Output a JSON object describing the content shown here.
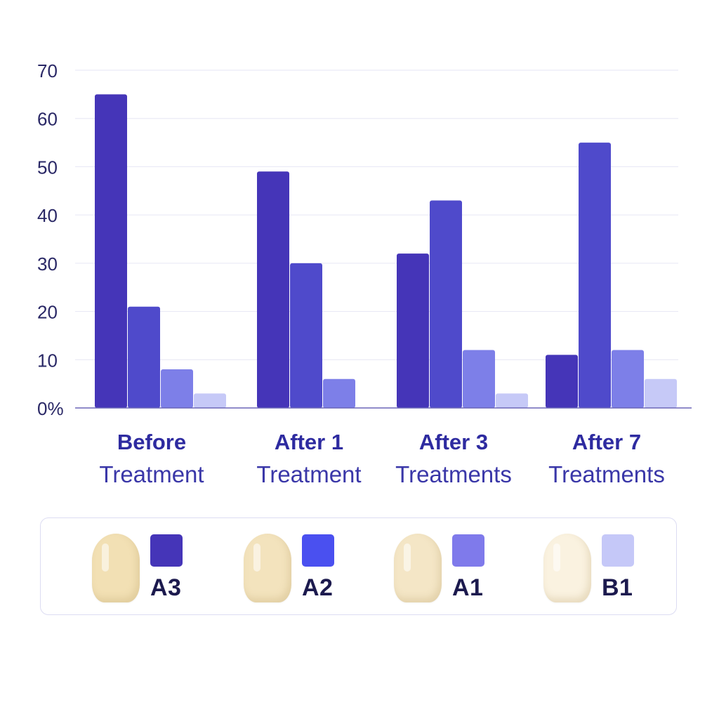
{
  "chart_data": {
    "type": "bar",
    "categories": [
      {
        "line1": "Before",
        "line2": "Treatment"
      },
      {
        "line1": "After 1",
        "line2": "Treatment"
      },
      {
        "line1": "After 3",
        "line2": "Treatments"
      },
      {
        "line1": "After 7",
        "line2": "Treatments"
      }
    ],
    "series": [
      {
        "name": "A3",
        "color": "#4535b8",
        "values": [
          65,
          49,
          32,
          11
        ]
      },
      {
        "name": "A2",
        "color": "#4f4acb",
        "values": [
          21,
          30,
          43,
          55
        ]
      },
      {
        "name": "A1",
        "color": "#7d7fe8",
        "values": [
          8,
          6,
          12,
          12
        ]
      },
      {
        "name": "B1",
        "color": "#c6c9f7",
        "values": [
          3,
          0,
          3,
          6
        ]
      }
    ],
    "ylim": [
      0,
      70
    ],
    "yticks": [
      "0%",
      "10",
      "20",
      "30",
      "40",
      "50",
      "60",
      "70"
    ],
    "grid": true,
    "legend_position": "bottom"
  },
  "legend": [
    {
      "label": "A3",
      "swatch_color": "#4535b8",
      "tooth_color": "#f2e0b4"
    },
    {
      "label": "A2",
      "swatch_color": "#4a50f0",
      "tooth_color": "#f3e3bd"
    },
    {
      "label": "A1",
      "swatch_color": "#7f7aeb",
      "tooth_color": "#f4e6c6"
    },
    {
      "label": "B1",
      "swatch_color": "#c5c8f8",
      "tooth_color": "#faf2e0"
    }
  ]
}
